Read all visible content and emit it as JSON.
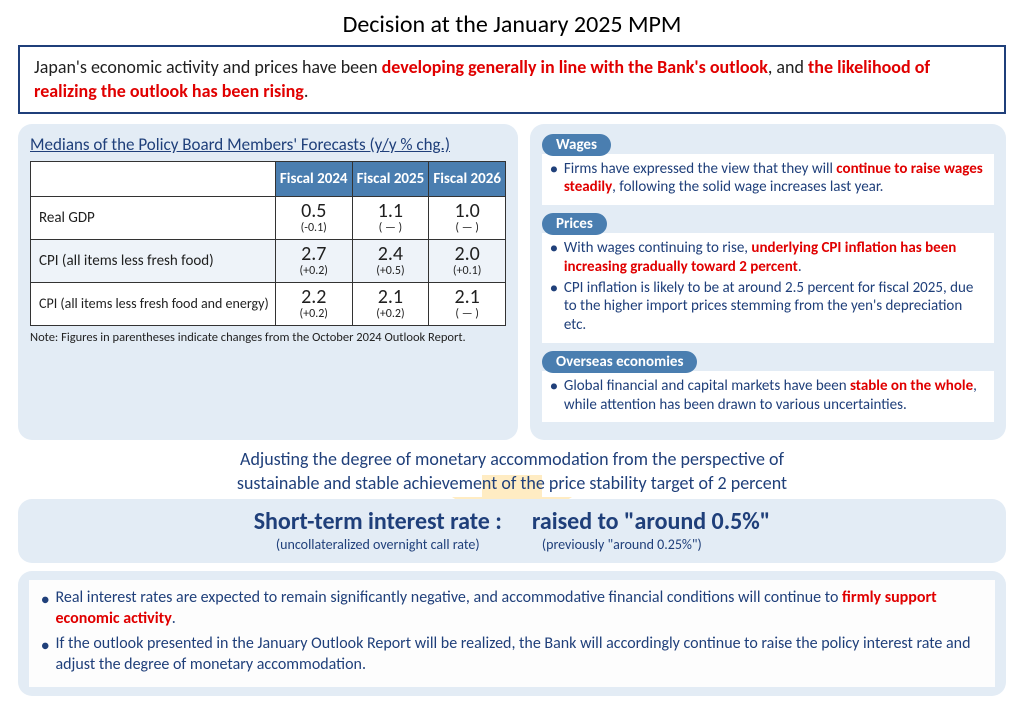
{
  "title": "Decision at the January 2025 MPM",
  "topbox": {
    "pre": "Japan's economic activity and prices have been ",
    "hl1": "developing generally in line with the Bank's outlook",
    "mid": ", and ",
    "hl2": "the likelihood of realizing the outlook has been rising",
    "post": "."
  },
  "table": {
    "title": "Medians of the Policy Board Members' Forecasts (y/y % chg.)",
    "cols": [
      "Fiscal 2024",
      "Fiscal 2025",
      "Fiscal 2026"
    ],
    "rows": [
      {
        "label": "Real GDP",
        "vals": [
          "0.5",
          "1.1",
          "1.0"
        ],
        "deltas": [
          "(-0.1)",
          "( — )",
          "( — )"
        ],
        "shade": false,
        "indent": false
      },
      {
        "label": "CPI (all items less fresh food)",
        "vals": [
          "2.7",
          "2.4",
          "2.0"
        ],
        "deltas": [
          "(+0.2)",
          "(+0.5)",
          "(+0.1)"
        ],
        "shade": true,
        "indent": false
      },
      {
        "label": "CPI (all items less fresh food and energy)",
        "vals": [
          "2.2",
          "2.1",
          "2.1"
        ],
        "deltas": [
          "(+0.2)",
          "(+0.2)",
          "( — )"
        ],
        "shade": false,
        "indent": true
      }
    ],
    "note": "Note: Figures in parentheses indicate changes from the October 2024 Outlook Report.",
    "header_bg": "#4a7eb0",
    "shade_bg": "#eef3f9"
  },
  "sections": {
    "wages": {
      "tag": "Wages",
      "items": [
        {
          "pre": "Firms have expressed the view that they will ",
          "hl": "continue to raise wages steadily",
          "post": ", following the solid wage increases last year."
        }
      ]
    },
    "prices": {
      "tag": "Prices",
      "items": [
        {
          "pre": "With wages continuing to rise, ",
          "hl": "underlying CPI inflation has been increasing gradually toward 2 percent",
          "post": "."
        },
        {
          "pre": "CPI inflation is likely to be at around 2.5 percent for fiscal 2025, due to the higher import prices stemming from the yen's depreciation etc.",
          "hl": "",
          "post": ""
        }
      ]
    },
    "overseas": {
      "tag": "Overseas economies",
      "items": [
        {
          "pre": "Global financial and capital markets have been ",
          "hl": "stable on the whole",
          "post": ", while attention has been drawn to various uncertainties."
        }
      ]
    }
  },
  "adjust": {
    "l1": "Adjusting the degree of monetary accommodation from the perspective of",
    "l2": "sustainable and stable achievement of the price stability target of 2 percent"
  },
  "rate": {
    "left_big": "Short-term interest rate  :",
    "left_sub": "(uncollateralized overnight call rate)",
    "right_big": "raised to \"around 0.5%\"",
    "right_sub": "(previously \"around 0.25%\")"
  },
  "bottom": [
    {
      "pre": "Real interest rates are expected to remain significantly negative, and accommodative financial conditions will continue to ",
      "hl": "firmly support economic activity",
      "post": "."
    },
    {
      "pre": "If the outlook presented in the January Outlook Report will be realized, the Bank will accordingly continue to raise the policy interest rate and adjust the degree of monetary accommodation.",
      "hl": "",
      "post": ""
    }
  ],
  "colors": {
    "navy": "#1f3f7a",
    "panel": "#e3ecf5",
    "red": "#e00000"
  }
}
